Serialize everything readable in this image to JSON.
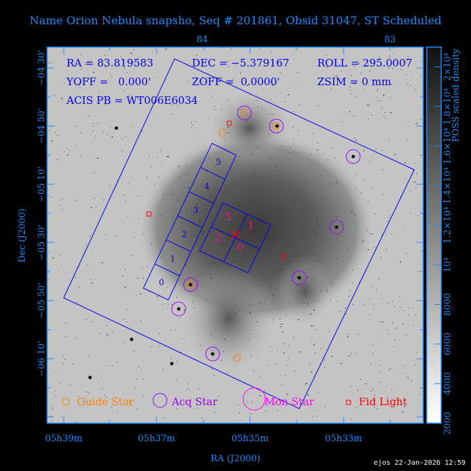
{
  "title": "Name Orion Nebula snapsho, Seq # 201861, Obsid 31047, ST Scheduled",
  "overlay": {
    "ra": "RA = 83.819583",
    "dec": "DEC = −5.379167",
    "roll": "ROLL = 295.0007",
    "yoff": "YOFF =   0.000'",
    "zoff": "ZOFF =  0.0000'",
    "zsim": "ZSIM = 0 mm",
    "acis": "ACIS PB = WT006E6034"
  },
  "legend": [
    {
      "label": "Guide Star",
      "color": "#ff8000"
    },
    {
      "label": "Acq Star",
      "color": "#9b00ff"
    },
    {
      "label": "Mon Star",
      "color": "#ff00ff"
    },
    {
      "label": "Fid Light",
      "color": "#ff0000"
    }
  ],
  "chips": {
    "s_array": [
      "0",
      "1",
      "2",
      "3",
      "4",
      "5"
    ],
    "i_array": [
      "0",
      "1",
      "2",
      "3"
    ]
  },
  "chart_data": {
    "type": "image",
    "xlabel": "RA (J2000)",
    "ylabel": "Dec (J2000)",
    "x_ticks_bottom": [
      "05h39m",
      "05h37m",
      "05h35m",
      "05h33m"
    ],
    "x_ticks_top": [
      "84",
      "83"
    ],
    "y_ticks": [
      "−04 30'",
      "−04 50'",
      "−05 10'",
      "−05 30'",
      "−05 50'",
      "−06 10'"
    ],
    "colorbar": {
      "label": "POSS scaled density",
      "ticks": [
        "2000",
        "4000",
        "6000",
        "8000",
        "10⁴",
        "1.2×10⁴",
        "1.4×10⁴",
        "1.6×10⁴",
        "1.8×10⁴",
        "2×10⁴"
      ],
      "range": [
        2000,
        21000
      ],
      "colormap": "white-to-black"
    },
    "colors": {
      "axes": "#1a8cff",
      "overlay": "#0000ee"
    }
  },
  "footer": {
    "stamp": "ejos 22-Jan-2026 12:59"
  }
}
